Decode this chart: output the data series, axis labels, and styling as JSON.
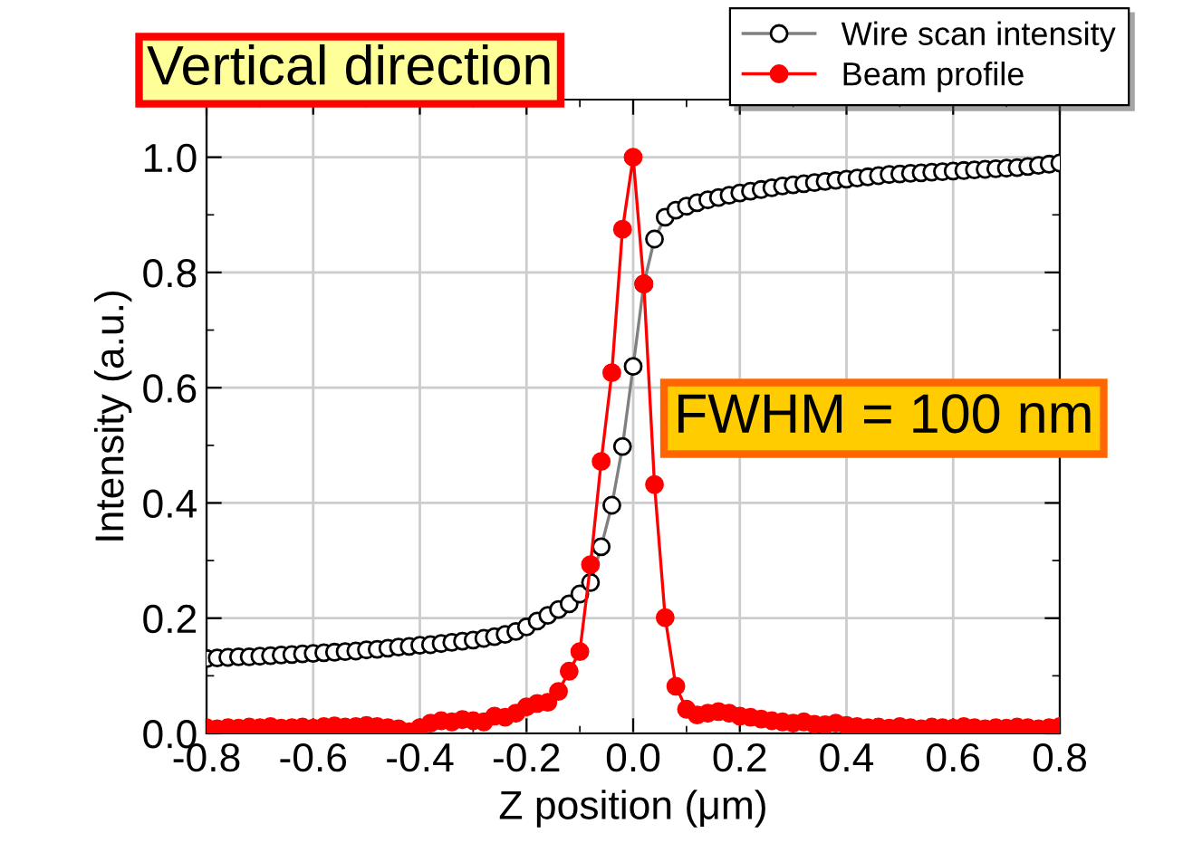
{
  "chart_data": {
    "type": "line",
    "title": "Vertical direction",
    "xlabel": "Z position (μm)",
    "ylabel": "Intensity (a.u.)",
    "x": [
      -0.8,
      -0.78,
      -0.76,
      -0.74,
      -0.72,
      -0.7,
      -0.68,
      -0.66,
      -0.64,
      -0.62,
      -0.6,
      -0.58,
      -0.56,
      -0.54,
      -0.52,
      -0.5,
      -0.48,
      -0.46,
      -0.44,
      -0.42,
      -0.4,
      -0.38,
      -0.36,
      -0.34,
      -0.32,
      -0.3,
      -0.28,
      -0.26,
      -0.24,
      -0.22,
      -0.2,
      -0.18,
      -0.16,
      -0.14,
      -0.12,
      -0.1,
      -0.08,
      -0.06,
      -0.04,
      -0.02,
      0.0,
      0.02,
      0.04,
      0.06,
      0.08,
      0.1,
      0.12,
      0.14,
      0.16,
      0.18,
      0.2,
      0.22,
      0.24,
      0.26,
      0.28,
      0.3,
      0.32,
      0.34,
      0.36,
      0.38,
      0.4,
      0.42,
      0.44,
      0.46,
      0.48,
      0.5,
      0.52,
      0.54,
      0.56,
      0.58,
      0.6,
      0.62,
      0.64,
      0.66,
      0.68,
      0.7,
      0.72,
      0.74,
      0.76,
      0.78,
      0.8
    ],
    "series": [
      {
        "name": "Wire scan intensity",
        "color": "#808080",
        "marker": "circle",
        "values": [
          0.13,
          0.131,
          0.132,
          0.133,
          0.133,
          0.134,
          0.135,
          0.136,
          0.137,
          0.138,
          0.139,
          0.14,
          0.141,
          0.142,
          0.143,
          0.145,
          0.146,
          0.148,
          0.15,
          0.151,
          0.153,
          0.154,
          0.156,
          0.158,
          0.16,
          0.162,
          0.165,
          0.168,
          0.172,
          0.177,
          0.185,
          0.195,
          0.205,
          0.215,
          0.225,
          0.242,
          0.262,
          0.324,
          0.396,
          0.498,
          0.637,
          0.78,
          0.858,
          0.896,
          0.908,
          0.915,
          0.921,
          0.926,
          0.93,
          0.934,
          0.938,
          0.941,
          0.944,
          0.947,
          0.95,
          0.952,
          0.954,
          0.956,
          0.958,
          0.96,
          0.962,
          0.964,
          0.966,
          0.968,
          0.97,
          0.971,
          0.972,
          0.973,
          0.974,
          0.975,
          0.976,
          0.977,
          0.978,
          0.979,
          0.98,
          0.981,
          0.982,
          0.984,
          0.986,
          0.988,
          0.99
        ]
      },
      {
        "name": "Beam profile",
        "color": "#ff0000",
        "marker": "circle",
        "values": [
          0.01,
          0.008,
          0.01,
          0.009,
          0.011,
          0.01,
          0.012,
          0.009,
          0.01,
          0.011,
          0.009,
          0.012,
          0.013,
          0.011,
          0.012,
          0.014,
          0.012,
          0.01,
          0.008,
          0.003,
          0.01,
          0.018,
          0.022,
          0.02,
          0.024,
          0.022,
          0.02,
          0.03,
          0.028,
          0.035,
          0.046,
          0.052,
          0.054,
          0.073,
          0.108,
          0.142,
          0.293,
          0.472,
          0.626,
          0.875,
          1.0,
          0.78,
          0.432,
          0.201,
          0.082,
          0.042,
          0.032,
          0.035,
          0.038,
          0.035,
          0.03,
          0.028,
          0.025,
          0.022,
          0.02,
          0.018,
          0.02,
          0.016,
          0.015,
          0.018,
          0.014,
          0.012,
          0.01,
          0.011,
          0.009,
          0.012,
          0.01,
          0.008,
          0.011,
          0.01,
          0.009,
          0.012,
          0.01,
          0.008,
          0.01,
          0.009,
          0.011,
          0.01,
          0.008,
          0.01,
          0.012
        ]
      }
    ],
    "xlim": [
      -0.8,
      0.8
    ],
    "xticks": [
      -0.8,
      -0.6,
      -0.4,
      -0.2,
      {
        "value": 0,
        "label": "0.0"
      },
      0.2,
      0.4,
      0.6,
      0.8
    ],
    "ylim": [
      0,
      1.1
    ],
    "yticks": [
      {
        "value": 0,
        "label": "0.0"
      },
      0.2,
      0.4,
      0.6,
      0.8,
      {
        "value": 1,
        "label": "1.0"
      }
    ],
    "grid": true,
    "legend": "top right",
    "line_style": "solid",
    "annotations": [
      "FWHM = 100 nm"
    ]
  }
}
